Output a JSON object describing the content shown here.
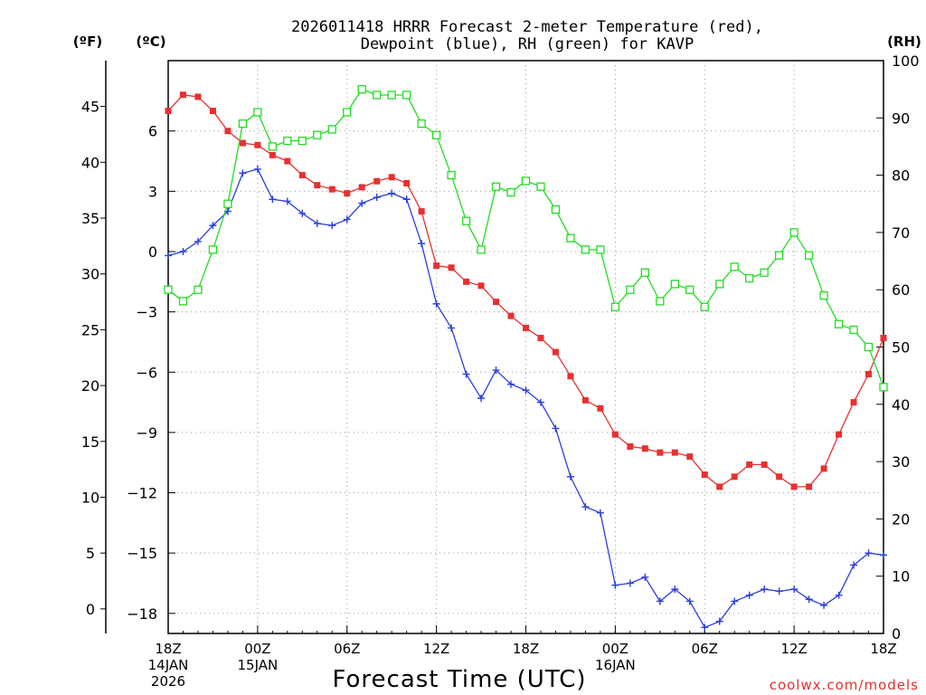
{
  "chart_data": {
    "type": "line",
    "title_lines": [
      "2026011418 HRRR Forecast 2-meter Temperature (red),",
      "Dewpoint (blue), RH (green) for KAVP"
    ],
    "xlabel": "Forecast Time (UTC)",
    "credit": "coolwx.com/models",
    "units": {
      "f": "(ºF)",
      "c": "(ºC)",
      "rh": "(RH)"
    },
    "x_range_hours": [
      0,
      48
    ],
    "x_ticks": [
      {
        "hour": 0,
        "lines": [
          "18Z",
          "14JAN",
          "2026"
        ]
      },
      {
        "hour": 6,
        "lines": [
          "00Z",
          "15JAN"
        ]
      },
      {
        "hour": 12,
        "lines": [
          "06Z"
        ]
      },
      {
        "hour": 18,
        "lines": [
          "12Z"
        ]
      },
      {
        "hour": 24,
        "lines": [
          "18Z"
        ]
      },
      {
        "hour": 30,
        "lines": [
          "00Z",
          "16JAN"
        ]
      },
      {
        "hour": 36,
        "lines": [
          "06Z"
        ]
      },
      {
        "hour": 42,
        "lines": [
          "12Z"
        ]
      },
      {
        "hour": 48,
        "lines": [
          "18Z"
        ]
      }
    ],
    "celsius_axis": {
      "range": [
        -19,
        9.5
      ],
      "ticks": [
        6,
        3,
        0,
        -3,
        -6,
        -9,
        -12,
        -15,
        -18
      ]
    },
    "fahrenheit_axis": {
      "ticks": [
        45,
        40,
        35,
        30,
        25,
        20,
        15,
        10,
        5,
        0
      ]
    },
    "rh_axis": {
      "range": [
        0,
        100
      ],
      "ticks": [
        100,
        90,
        80,
        70,
        60,
        50,
        40,
        30,
        20,
        10,
        0
      ]
    },
    "series": [
      {
        "name": "2-meter Temperature",
        "unit": "C",
        "color": "#e83030",
        "marker": "filled-square",
        "values": [
          7.0,
          7.8,
          7.7,
          7.0,
          6.0,
          5.4,
          5.3,
          4.8,
          4.5,
          3.8,
          3.3,
          3.1,
          2.9,
          3.2,
          3.5,
          3.7,
          3.4,
          2.0,
          -0.7,
          -0.8,
          -1.5,
          -1.7,
          -2.5,
          -3.2,
          -3.8,
          -4.3,
          -5.0,
          -6.2,
          -7.4,
          -7.8,
          -9.1,
          -9.7,
          -9.8,
          -10.0,
          -10.0,
          -10.2,
          -11.1,
          -11.7,
          -11.2,
          -10.6,
          -10.6,
          -11.2,
          -11.7,
          -11.7,
          -10.8,
          -9.1,
          -7.5,
          -6.1,
          -4.3
        ]
      },
      {
        "name": "Dewpoint",
        "unit": "C",
        "color": "#2a3fe0",
        "marker": "plus",
        "values": [
          -0.2,
          0.0,
          0.5,
          1.3,
          2.0,
          3.9,
          4.1,
          2.6,
          2.5,
          1.9,
          1.4,
          1.3,
          1.6,
          2.4,
          2.7,
          2.9,
          2.6,
          0.4,
          -2.6,
          -3.8,
          -6.1,
          -7.3,
          -5.9,
          -6.6,
          -6.9,
          -7.5,
          -8.8,
          -11.2,
          -12.7,
          -13.0,
          -16.6,
          -16.5,
          -16.2,
          -17.4,
          -16.8,
          -17.4,
          -18.7,
          -18.4,
          -17.4,
          -17.1,
          -16.8,
          -16.9,
          -16.8,
          -17.3,
          -17.6,
          -17.1,
          -15.6,
          -15.0,
          -15.1
        ]
      },
      {
        "name": "RH",
        "unit": "%",
        "color": "#22dd22",
        "marker": "open-square",
        "values": [
          60,
          58,
          60,
          67,
          75,
          89,
          91,
          85,
          86,
          86,
          87,
          88,
          91,
          95,
          94,
          94,
          94,
          89,
          87,
          80,
          72,
          67,
          78,
          77,
          79,
          78,
          74,
          69,
          67,
          67,
          57,
          60,
          63,
          58,
          61,
          60,
          57,
          61,
          64,
          62,
          63,
          66,
          70,
          66,
          59,
          54,
          53,
          50,
          43
        ]
      }
    ]
  }
}
